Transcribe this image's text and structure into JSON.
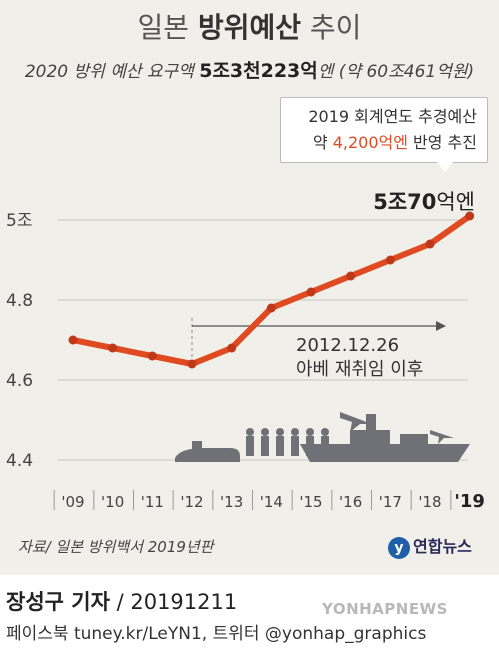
{
  "chart_data": {
    "type": "line",
    "title_pre": "일본 ",
    "title_bold": "방위예산",
    "title_post": " 추이",
    "subtitle_pre": "2020 방위 예산 요구액 ",
    "subtitle_bold": "5조3천223억",
    "subtitle_post": "엔 (약 60조461억원)",
    "categories": [
      "'09",
      "'10",
      "'11",
      "'12",
      "'13",
      "'14",
      "'15",
      "'16",
      "'17",
      "'18",
      "'19"
    ],
    "values": [
      4.7,
      4.68,
      4.66,
      4.64,
      4.68,
      4.78,
      4.82,
      4.86,
      4.9,
      4.94,
      5.01
    ],
    "yticks": [
      {
        "value": 4.4,
        "label": "4.4"
      },
      {
        "value": 4.6,
        "label": "4.6"
      },
      {
        "value": 4.8,
        "label": "4.8"
      },
      {
        "value": 5.0,
        "label": "5조"
      }
    ],
    "ylim": [
      4.4,
      5.0
    ],
    "grid": true,
    "line_color": "#e04a21",
    "final_label_bold": "5조70",
    "final_label_rest": "억엔",
    "callout": {
      "line1": "2019 회계연도 추경예산",
      "line2_pre": "약 ",
      "line2_highlight": "4,200억엔",
      "line2_post": " 반영 추진"
    },
    "event": {
      "date": "2012.12.26",
      "text": "아베 재취임 이후"
    }
  },
  "source": "자료/ 일본 방위백서 2019년판",
  "logo_text": "연합뉴스",
  "reporter_bold": "장성구 기자",
  "reporter_rest": " / 20191211",
  "social": "페이스북 tuney.kr/LeYN1, 트위터 @yonhap_graphics",
  "watermark": "YONHAPNEWS"
}
